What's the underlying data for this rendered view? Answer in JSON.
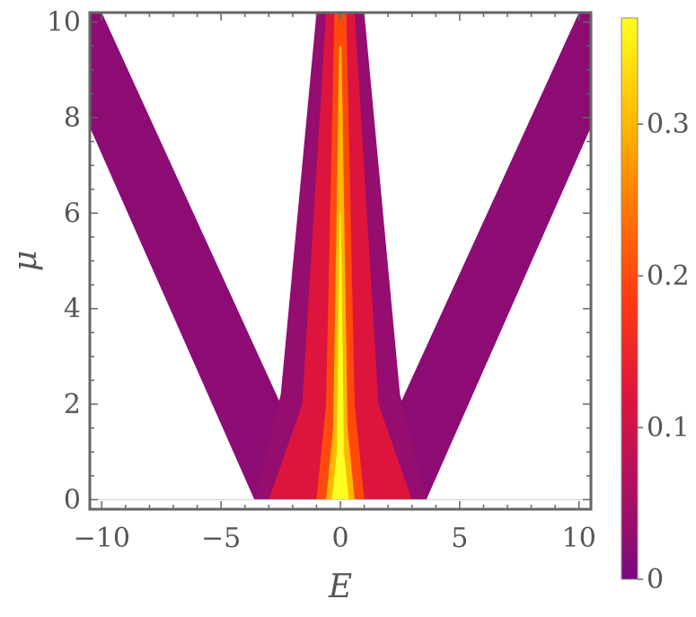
{
  "chart_data": {
    "type": "heatmap",
    "title": "",
    "xlabel": "E",
    "ylabel": "μ",
    "xlim": [
      -10.5,
      10.5
    ],
    "ylim": [
      -0.2,
      10.2
    ],
    "x_ticks": [
      -10,
      -5,
      0,
      5,
      10
    ],
    "x_tick_labels": [
      "−10",
      "−5",
      "0",
      "5",
      "10"
    ],
    "y_ticks": [
      0,
      2,
      4,
      6,
      8,
      10
    ],
    "y_tick_labels": [
      "0",
      "2",
      "4",
      "6",
      "8",
      "10"
    ],
    "colorbar": {
      "range": [
        0,
        0.37
      ],
      "ticks": [
        0,
        0.1,
        0.2,
        0.3
      ],
      "tick_labels": [
        "0",
        "0.1",
        "0.2",
        "0.3"
      ],
      "colors": [
        "#7a0a7e",
        "#b01060",
        "#e0153a",
        "#ff3a10",
        "#ff7a00",
        "#ffc000",
        "#ffff20"
      ]
    },
    "regions": [
      {
        "name": "left-outer-band",
        "value": 0.02,
        "polygon": [
          [
            -10.5,
            7.8
          ],
          [
            -10.5,
            10.2
          ],
          [
            -10.0,
            10.2
          ],
          [
            -2.5,
            2.0
          ],
          [
            -2.5,
            0.0
          ],
          [
            -3.6,
            0.0
          ]
        ]
      },
      {
        "name": "right-outer-band",
        "value": 0.02,
        "polygon": [
          [
            10.5,
            7.8
          ],
          [
            10.5,
            10.2
          ],
          [
            10.0,
            10.2
          ],
          [
            2.5,
            2.0
          ],
          [
            2.5,
            0.0
          ],
          [
            3.6,
            0.0
          ]
        ]
      },
      {
        "name": "central-wide",
        "value": 0.03,
        "polygon": [
          [
            -1.0,
            10.2
          ],
          [
            1.0,
            10.2
          ],
          [
            2.5,
            2.2
          ],
          [
            3.6,
            0.0
          ],
          [
            -3.6,
            0.0
          ],
          [
            -2.5,
            2.2
          ]
        ]
      },
      {
        "name": "central-mid",
        "value": 0.12,
        "polygon": [
          [
            -0.6,
            10.2
          ],
          [
            0.6,
            10.2
          ],
          [
            1.6,
            2.0
          ],
          [
            3.0,
            0.0
          ],
          [
            -3.0,
            0.0
          ],
          [
            -1.6,
            2.0
          ]
        ]
      },
      {
        "name": "central-core",
        "value": 0.2,
        "polygon": [
          [
            -0.25,
            10.2
          ],
          [
            0.25,
            10.2
          ],
          [
            0.6,
            2.0
          ],
          [
            1.0,
            0.0
          ],
          [
            -1.0,
            0.0
          ],
          [
            -0.6,
            2.0
          ]
        ]
      },
      {
        "name": "central-peak",
        "value": 0.3,
        "polygon": [
          [
            -0.05,
            9.5
          ],
          [
            0.05,
            9.5
          ],
          [
            0.3,
            1.5
          ],
          [
            0.6,
            0.0
          ],
          [
            -0.6,
            0.0
          ],
          [
            -0.3,
            1.5
          ]
        ]
      },
      {
        "name": "central-max",
        "value": 0.37,
        "polygon": [
          [
            -0.02,
            6.0
          ],
          [
            0.02,
            6.0
          ],
          [
            0.15,
            1.0
          ],
          [
            0.35,
            0.0
          ],
          [
            -0.35,
            0.0
          ],
          [
            -0.15,
            1.0
          ]
        ]
      }
    ]
  }
}
